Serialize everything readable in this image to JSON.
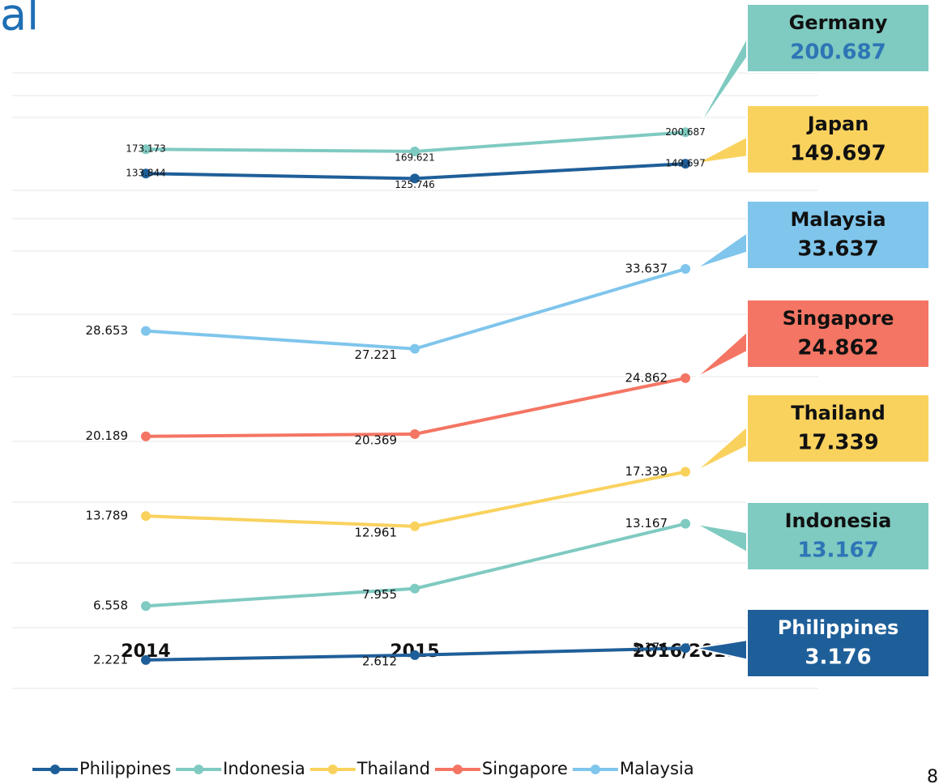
{
  "title": "al",
  "page_number": "8",
  "chart_data": [
    {
      "type": "line",
      "categories": [
        "2014",
        "2015",
        "2016/2017"
      ],
      "ylim": [
        100,
        310
      ],
      "legend": false,
      "series": [
        {
          "name": "Germany",
          "color": "#7fcac1",
          "callout_color": "#7fcac1",
          "callout_text_color": "#2e75b6",
          "values": [
            173.173,
            169.621,
            200.687
          ]
        },
        {
          "name": "Japan",
          "color": "#1f5f99",
          "callout_color": "#f9d25e",
          "callout_text_color": "#111111",
          "values": [
            133.844,
            125.746,
            149.697
          ]
        }
      ]
    },
    {
      "type": "line",
      "categories": [
        "2014",
        "2015",
        "2016/2017"
      ],
      "ylim": [
        0,
        38
      ],
      "legend": true,
      "series": [
        {
          "name": "Philippines",
          "color": "#1f5f99",
          "callout_color": "#1f5f99",
          "callout_text_color": "#ffffff",
          "values": [
            2.221,
            2.612,
            3.176
          ]
        },
        {
          "name": "Indonesia",
          "color": "#7fcac1",
          "callout_color": "#7fcac1",
          "callout_text_color": "#2e75b6",
          "values": [
            6.558,
            7.955,
            13.167
          ]
        },
        {
          "name": "Thailand",
          "color": "#f9d25e",
          "callout_color": "#f9d25e",
          "callout_text_color": "#111111",
          "values": [
            13.789,
            12.961,
            17.339
          ]
        },
        {
          "name": "Singapore",
          "color": "#f47563",
          "callout_color": "#f47563",
          "callout_text_color": "#111111",
          "values": [
            20.189,
            20.369,
            24.862
          ]
        },
        {
          "name": "Malaysia",
          "color": "#7fc5ec",
          "callout_color": "#7fc5ec",
          "callout_text_color": "#111111",
          "values": [
            28.653,
            27.221,
            33.637
          ]
        }
      ]
    }
  ]
}
